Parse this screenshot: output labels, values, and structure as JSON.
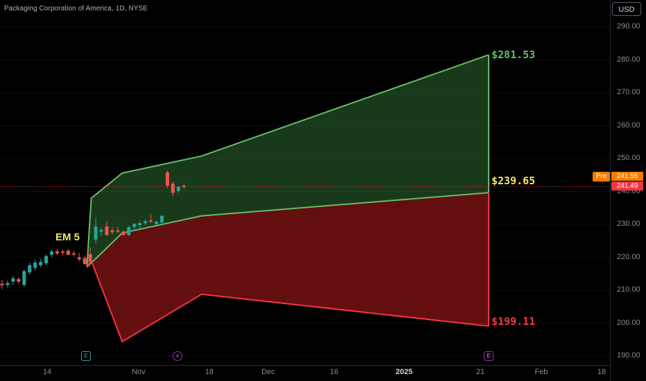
{
  "header": {
    "symbol_title": "Packaging Corporation of America, 1D, NYSE",
    "currency": "USD"
  },
  "price_axis": {
    "ticks": [
      "290.00",
      "280.00",
      "270.00",
      "260.00",
      "250.00",
      "240.00",
      "230.00",
      "220.00",
      "210.00",
      "200.00",
      "190.00"
    ],
    "pre_label": "Pre",
    "pre_price": "241.55",
    "last_price": "241.49"
  },
  "time_axis": {
    "ticks": [
      {
        "label": "14",
        "bold": false
      },
      {
        "label": "Nov",
        "bold": false
      },
      {
        "label": "18",
        "bold": false
      },
      {
        "label": "Dec",
        "bold": false
      },
      {
        "label": "16",
        "bold": false
      },
      {
        "label": "2025",
        "bold": true
      },
      {
        "label": "21",
        "bold": false
      },
      {
        "label": "Feb",
        "bold": false
      },
      {
        "label": "18",
        "bold": false
      }
    ]
  },
  "annotations": {
    "em_label": "EM 5",
    "upper_target": "$281.53",
    "mid_target": "$239.65",
    "lower_target": "$199.11"
  },
  "events": {
    "earnings_past": "E",
    "dividend": "⚡",
    "earnings_future": "E"
  },
  "colors": {
    "bull": "#26a69a",
    "bear": "#ef5350",
    "green_band": "#66bb6a",
    "red_band": "#f23645",
    "mid_label": "#f5e663"
  },
  "chart_data": {
    "type": "candlestick",
    "title": "Packaging Corporation of America, 1D, NYSE",
    "ylim": [
      188,
      294
    ],
    "ohlc": [
      {
        "o": 212.0,
        "h": 213.2,
        "l": 210.4,
        "c": 211.5
      },
      {
        "o": 211.6,
        "h": 213.0,
        "l": 210.8,
        "c": 212.2
      },
      {
        "o": 212.6,
        "h": 214.4,
        "l": 211.6,
        "c": 213.6
      },
      {
        "o": 213.4,
        "h": 214.0,
        "l": 211.8,
        "c": 212.6
      },
      {
        "o": 211.6,
        "h": 216.4,
        "l": 211.0,
        "c": 215.8
      },
      {
        "o": 215.4,
        "h": 218.4,
        "l": 214.8,
        "c": 217.6
      },
      {
        "o": 216.8,
        "h": 219.4,
        "l": 216.0,
        "c": 218.4
      },
      {
        "o": 217.6,
        "h": 219.6,
        "l": 217.0,
        "c": 218.6
      },
      {
        "o": 218.2,
        "h": 220.8,
        "l": 217.6,
        "c": 220.4
      },
      {
        "o": 220.8,
        "h": 222.4,
        "l": 220.0,
        "c": 221.8
      },
      {
        "o": 221.8,
        "h": 222.6,
        "l": 220.8,
        "c": 221.2
      },
      {
        "o": 221.8,
        "h": 222.4,
        "l": 220.6,
        "c": 221.4
      },
      {
        "o": 222.0,
        "h": 222.6,
        "l": 220.6,
        "c": 220.8
      },
      {
        "o": 221.2,
        "h": 222.0,
        "l": 220.2,
        "c": 220.8
      },
      {
        "o": 220.0,
        "h": 221.4,
        "l": 218.8,
        "c": 219.4
      },
      {
        "o": 219.8,
        "h": 220.6,
        "l": 217.6,
        "c": 218.0
      },
      {
        "o": 221.0,
        "h": 223.0,
        "l": 217.8,
        "c": 218.6
      },
      {
        "o": 225.4,
        "h": 232.0,
        "l": 224.2,
        "c": 229.4
      },
      {
        "o": 227.8,
        "h": 229.2,
        "l": 226.4,
        "c": 228.4
      },
      {
        "o": 229.4,
        "h": 231.0,
        "l": 226.4,
        "c": 226.8
      },
      {
        "o": 228.2,
        "h": 229.2,
        "l": 227.0,
        "c": 227.6
      },
      {
        "o": 228.2,
        "h": 229.4,
        "l": 227.4,
        "c": 227.8
      },
      {
        "o": 227.8,
        "h": 228.4,
        "l": 226.4,
        "c": 226.8
      },
      {
        "o": 226.8,
        "h": 229.6,
        "l": 226.4,
        "c": 229.2
      },
      {
        "o": 229.2,
        "h": 230.4,
        "l": 228.0,
        "c": 230.2
      },
      {
        "o": 229.8,
        "h": 231.2,
        "l": 228.6,
        "c": 230.4
      },
      {
        "o": 230.4,
        "h": 231.6,
        "l": 229.8,
        "c": 231.0
      },
      {
        "o": 231.2,
        "h": 233.2,
        "l": 230.4,
        "c": 230.8
      },
      {
        "o": 230.2,
        "h": 231.2,
        "l": 229.6,
        "c": 230.8
      },
      {
        "o": 230.6,
        "h": 232.8,
        "l": 230.0,
        "c": 232.6
      },
      {
        "o": 245.8,
        "h": 246.4,
        "l": 241.0,
        "c": 241.8
      },
      {
        "o": 242.4,
        "h": 243.0,
        "l": 238.6,
        "c": 239.6
      },
      {
        "o": 240.2,
        "h": 241.8,
        "l": 239.6,
        "c": 241.4
      },
      {
        "o": 241.8,
        "h": 242.4,
        "l": 240.6,
        "c": 241.4
      }
    ],
    "expected_move": {
      "upper_boundary": [
        {
          "x": "2024-10-23",
          "y": 217.0
        },
        {
          "x": "2024-10-24",
          "y": 238.0
        },
        {
          "x": "2024-10-31",
          "y": 245.6
        },
        {
          "x": "2024-11-18",
          "y": 250.8
        },
        {
          "x": "2025-01-22",
          "y": 281.53
        }
      ],
      "middle_boundary": [
        {
          "x": "2024-10-23",
          "y": 217.0
        },
        {
          "x": "2024-10-31",
          "y": 227.4
        },
        {
          "x": "2024-11-18",
          "y": 232.6
        },
        {
          "x": "2025-01-22",
          "y": 239.65
        }
      ],
      "lower_boundary": [
        {
          "x": "2024-10-23",
          "y": 217.0
        },
        {
          "x": "2024-10-24",
          "y": 219.0
        },
        {
          "x": "2024-10-31",
          "y": 194.4
        },
        {
          "x": "2024-11-18",
          "y": 208.8
        },
        {
          "x": "2025-01-22",
          "y": 199.11
        }
      ]
    },
    "current_price_line": 241.49
  }
}
